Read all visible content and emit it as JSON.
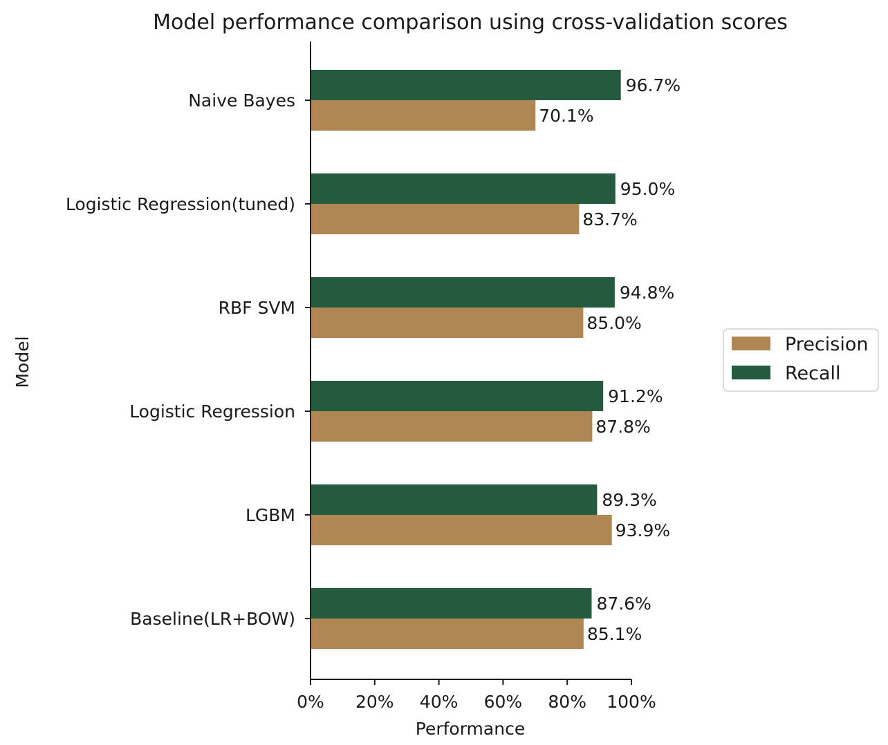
{
  "chart_data": {
    "type": "bar",
    "orientation": "horizontal",
    "title": "Model performance comparison using cross-validation scores",
    "xlabel": "Performance",
    "ylabel": "Model",
    "xlim": [
      0,
      100
    ],
    "xticks": [
      0,
      20,
      40,
      60,
      80,
      100
    ],
    "xtick_labels": [
      "0%",
      "20%",
      "40%",
      "60%",
      "80%",
      "100%"
    ],
    "categories": [
      "Naive Bayes",
      "Logistic Regression(tuned)",
      "RBF SVM",
      "Logistic Regression",
      "LGBM",
      "Baseline(LR+BOW)"
    ],
    "series": [
      {
        "name": "Recall",
        "color": "#245a3e",
        "values": [
          96.7,
          95.0,
          94.8,
          91.2,
          89.3,
          87.6
        ],
        "labels": [
          "96.7%",
          "95.0%",
          "94.8%",
          "91.2%",
          "89.3%",
          "87.6%"
        ]
      },
      {
        "name": "Precision",
        "color": "#b08753",
        "values": [
          70.1,
          83.7,
          85.0,
          87.8,
          93.9,
          85.1
        ],
        "labels": [
          "70.1%",
          "83.7%",
          "85.0%",
          "87.8%",
          "93.9%",
          "85.1%"
        ]
      }
    ],
    "legend": {
      "entries": [
        "Precision",
        "Recall"
      ],
      "placement": "center-right, outside plot"
    },
    "grid": false
  }
}
